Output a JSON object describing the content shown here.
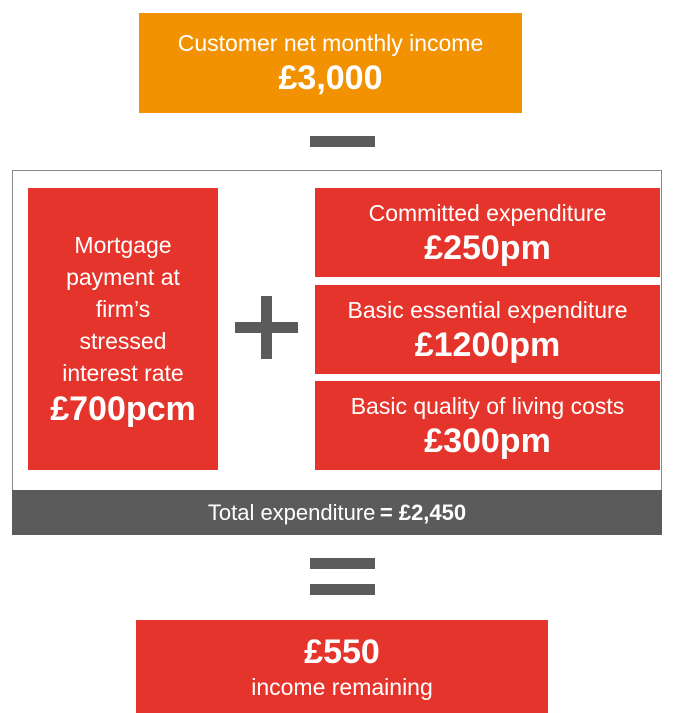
{
  "income": {
    "label": "Customer net monthly income",
    "amount": "£3,000"
  },
  "mortgage": {
    "label_lines": [
      "Mortgage",
      "payment at",
      "firm’s",
      "stressed",
      "interest rate"
    ],
    "amount": "£700pcm"
  },
  "expenditures": [
    {
      "label": "Committed expenditure",
      "amount": "£250pm"
    },
    {
      "label": "Basic essential expenditure",
      "amount": "£1200pm"
    },
    {
      "label": "Basic quality of living costs",
      "amount": "£300pm"
    }
  ],
  "total": {
    "label": "Total expenditure",
    "amount": "= £2,450"
  },
  "remaining": {
    "amount": "£550",
    "label": "income remaining"
  }
}
